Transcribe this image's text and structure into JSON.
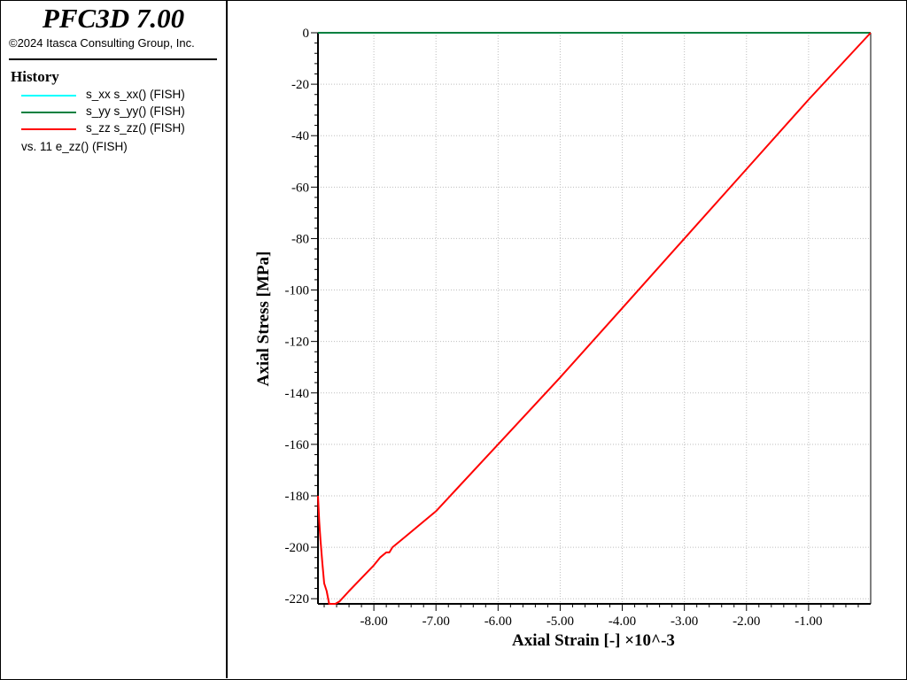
{
  "app": {
    "title": "PFC3D 7.00",
    "copyright": "©2024 Itasca Consulting Group, Inc."
  },
  "legend": {
    "heading": "History",
    "items": [
      {
        "label": "s_xx s_xx() (FISH)",
        "color": "#00ffff"
      },
      {
        "label": "s_yy s_yy() (FISH)",
        "color": "#008040"
      },
      {
        "label": "s_zz s_zz() (FISH)",
        "color": "#ff0000"
      }
    ],
    "vs_label": "vs. 11 e_zz() (FISH)"
  },
  "chart_data": {
    "type": "line",
    "xlabel": "Axial Strain [-] ×10^-3",
    "ylabel": "Axial Stress [MPa]",
    "xlim": [
      -8.9,
      0
    ],
    "ylim": [
      -222,
      0
    ],
    "grid": true,
    "x_ticks": [
      -8,
      -7,
      -6,
      -5,
      -4,
      -3,
      -2,
      -1
    ],
    "x_tick_labels": [
      "-8.00",
      "-7.00",
      "-6.00",
      "-5.00",
      "-4.00",
      "-3.00",
      "-2.00",
      "-1.00"
    ],
    "y_ticks": [
      0,
      -20,
      -40,
      -60,
      -80,
      -100,
      -120,
      -140,
      -160,
      -180,
      -200,
      -220
    ],
    "y_tick_labels": [
      "0",
      "-20",
      "-40",
      "-60",
      "-80",
      "-100",
      "-120",
      "-140",
      "-160",
      "-180",
      "-200",
      "-220"
    ],
    "series": [
      {
        "name": "s_xx s_xx() (FISH)",
        "color": "#00ffff",
        "x": [
          -8.9,
          0
        ],
        "y": [
          0,
          0
        ]
      },
      {
        "name": "s_yy s_yy() (FISH)",
        "color": "#008040",
        "x": [
          -8.9,
          0
        ],
        "y": [
          0,
          0
        ]
      },
      {
        "name": "s_zz s_zz() (FISH)",
        "color": "#ff0000",
        "x": [
          0,
          -1.0,
          -2.0,
          -3.0,
          -4.0,
          -5.0,
          -6.0,
          -7.0,
          -7.2,
          -7.5,
          -7.7,
          -7.75,
          -7.8,
          -7.9,
          -8.0,
          -8.2,
          -8.4,
          -8.55,
          -8.62,
          -8.68,
          -8.72,
          -8.76,
          -8.8,
          -8.83,
          -8.86,
          -8.88,
          -8.9
        ],
        "y": [
          0,
          -26,
          -53,
          -80,
          -107,
          -134,
          -160,
          -186,
          -190,
          -196,
          -200,
          -202,
          -202,
          -204,
          -207,
          -212,
          -217,
          -221,
          -222,
          -222,
          -222,
          -217,
          -214,
          -206,
          -197,
          -190,
          -180
        ]
      }
    ]
  }
}
